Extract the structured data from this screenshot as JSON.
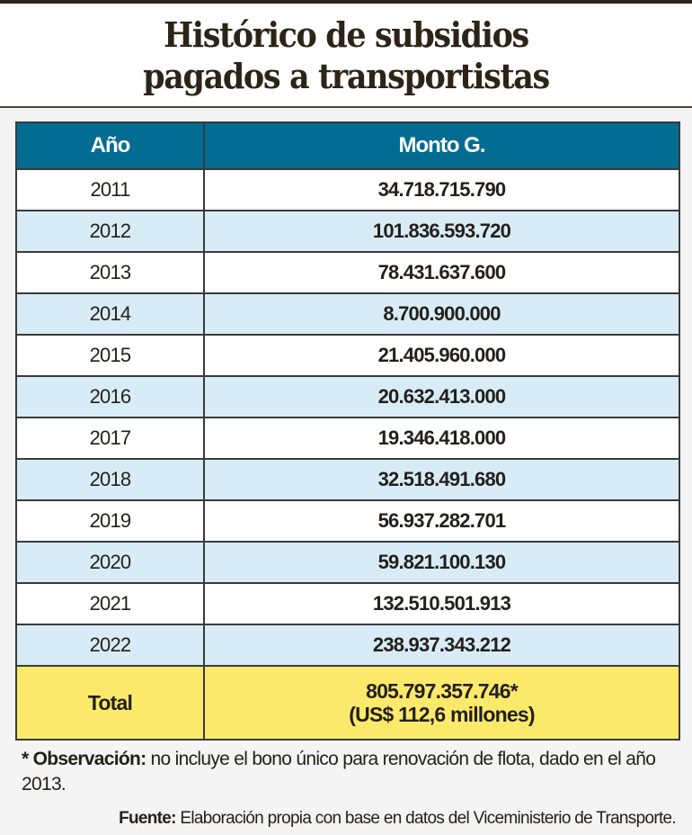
{
  "title": {
    "line1": "Histórico de subsidios",
    "line2": "pagados a transportistas"
  },
  "table": {
    "headers": [
      "Año",
      "Monto G."
    ],
    "rows": [
      {
        "year": "2011",
        "amount": "34.718.715.790"
      },
      {
        "year": "2012",
        "amount": "101.836.593.720"
      },
      {
        "year": "2013",
        "amount": "78.431.637.600"
      },
      {
        "year": "2014",
        "amount": "8.700.900.000"
      },
      {
        "year": "2015",
        "amount": "21.405.960.000"
      },
      {
        "year": "2016",
        "amount": "20.632.413.000"
      },
      {
        "year": "2017",
        "amount": "19.346.418.000"
      },
      {
        "year": "2018",
        "amount": "32.518.491.680"
      },
      {
        "year": "2019",
        "amount": "56.937.282.701"
      },
      {
        "year": "2020",
        "amount": "59.821.100.130"
      },
      {
        "year": "2021",
        "amount": "132.510.501.913"
      },
      {
        "year": "2022",
        "amount": "238.937.343.212"
      }
    ],
    "total": {
      "label": "Total",
      "amount": "805.797.357.746*",
      "usd": "(US$ 112,6 millones)"
    }
  },
  "note": {
    "label": "* Observación:",
    "text": " no incluye el bono único para renovación de flota, dado en el año 2013."
  },
  "source": {
    "label": "Fuente:",
    "text": " Elaboración propia con base en datos del Viceministerio de Transporte."
  },
  "colors": {
    "header": "#036c93",
    "stripe": "#d7ecf6",
    "total": "#fbe96c",
    "title": "#2c2416"
  }
}
